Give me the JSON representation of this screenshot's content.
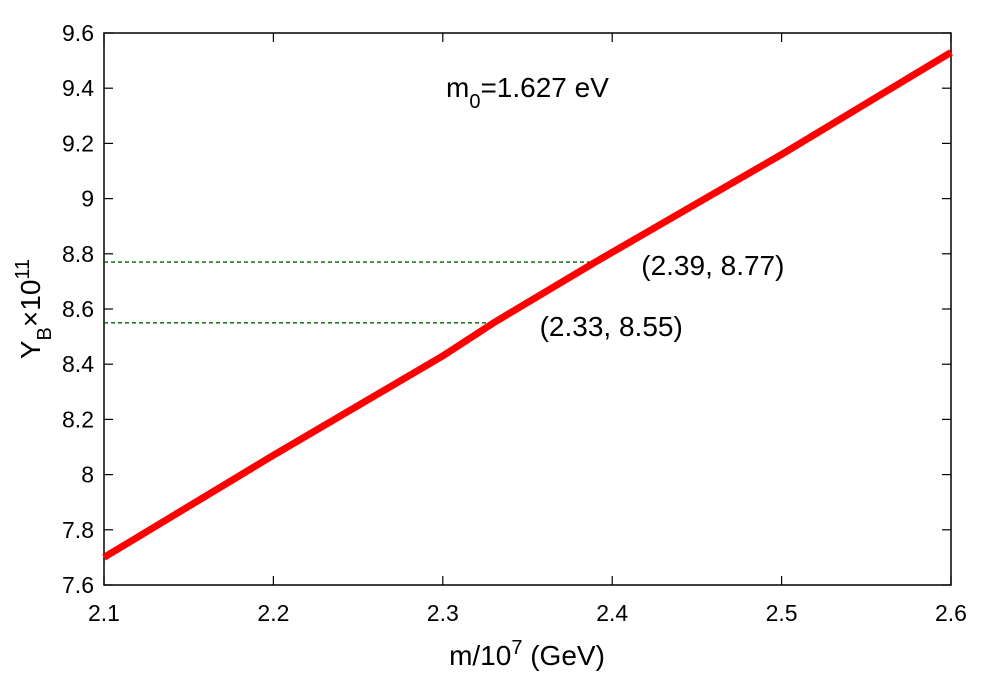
{
  "chart_data": {
    "type": "line",
    "xlabel": {
      "base": "m/10",
      "sup": "7",
      "rest": " (GeV)"
    },
    "ylabel": {
      "base": "Y",
      "sub": "B",
      "mid": "×10",
      "sup": "11"
    },
    "xlim": [
      2.1,
      2.6
    ],
    "ylim": [
      7.6,
      9.6
    ],
    "xticks": [
      {
        "value": 2.1,
        "label": "2.1"
      },
      {
        "value": 2.2,
        "label": "2.2"
      },
      {
        "value": 2.3,
        "label": "2.3"
      },
      {
        "value": 2.4,
        "label": "2.4"
      },
      {
        "value": 2.5,
        "label": "2.5"
      },
      {
        "value": 2.6,
        "label": "2.6"
      }
    ],
    "yticks": [
      {
        "value": 7.6,
        "label": "7.6"
      },
      {
        "value": 7.8,
        "label": "7.8"
      },
      {
        "value": 8.0,
        "label": "8"
      },
      {
        "value": 8.2,
        "label": "8.2"
      },
      {
        "value": 8.4,
        "label": "8.4"
      },
      {
        "value": 8.6,
        "label": "8.6"
      },
      {
        "value": 8.8,
        "label": "8.8"
      },
      {
        "value": 9.0,
        "label": "9"
      },
      {
        "value": 9.2,
        "label": "9.2"
      },
      {
        "value": 9.4,
        "label": "9.4"
      },
      {
        "value": 9.6,
        "label": "9.6"
      }
    ],
    "grid": false,
    "series": [
      {
        "color": "#ff0000",
        "x": [
          2.1,
          2.2,
          2.3,
          2.33,
          2.39,
          2.5,
          2.6
        ],
        "y": [
          7.7,
          8.07,
          8.43,
          8.55,
          8.77,
          9.16,
          9.53
        ]
      }
    ],
    "title_annotation": {
      "base": "m",
      "sub": "0",
      "rest": "=1.627 eV"
    },
    "annotations": [
      {
        "x": 2.39,
        "y": 8.77,
        "text": "(2.39, 8.77)"
      },
      {
        "x": 2.33,
        "y": 8.55,
        "text": "(2.33, 8.55)"
      }
    ],
    "reference_line_color": "#006400"
  }
}
